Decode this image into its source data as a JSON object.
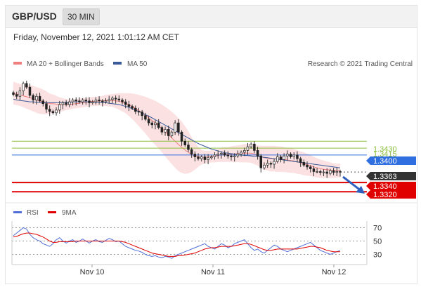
{
  "header": {
    "pair": "GBP/USD",
    "timeframe": "30 MIN"
  },
  "datetime": "Friday, November 12, 2021 1:01:12 AM CET",
  "legend": {
    "bollinger": "MA 20 + Bollinger Bands",
    "ma50": "MA 50",
    "research": "Research © 2021 Trading Central"
  },
  "rsi_legend": {
    "rsi": "RSI",
    "ma9": "9MA"
  },
  "colors": {
    "bollinger": "#f08080",
    "ma50": "#3a5a9a",
    "rsi": "#4f6fd8",
    "ma9": "#e00000",
    "resistance": "#8cbf3f",
    "pivot": "#2f6fe0",
    "support": "#e00000",
    "current": "#333333"
  },
  "chart_data": [
    {
      "type": "candlestick",
      "title": "",
      "x_labels": [
        "Nov 10",
        "Nov 11",
        "Nov 12"
      ],
      "ylim": [
        1.3305,
        1.3585
      ],
      "levels": [
        {
          "value": "1.3430",
          "kind": "resistance"
        },
        {
          "value": "1.3415",
          "kind": "resistance"
        },
        {
          "value": "1.3400",
          "kind": "pivot"
        },
        {
          "value": "1.3363",
          "kind": "current"
        },
        {
          "value": "1.3340",
          "kind": "support"
        },
        {
          "value": "1.3320",
          "kind": "support"
        }
      ],
      "close": [
        1.3532,
        1.3528,
        1.354,
        1.3556,
        1.3548,
        1.353,
        1.352,
        1.3528,
        1.3518,
        1.3512,
        1.35,
        1.3495,
        1.3492,
        1.3498,
        1.351,
        1.3514,
        1.351,
        1.3516,
        1.352,
        1.3518,
        1.3516,
        1.352,
        1.3518,
        1.3514,
        1.3516,
        1.352,
        1.3518,
        1.3516,
        1.3518,
        1.3521,
        1.3524,
        1.3522,
        1.352,
        1.3516,
        1.351,
        1.3506,
        1.3502,
        1.3495,
        1.3494,
        1.3486,
        1.3478,
        1.347,
        1.3466,
        1.347,
        1.346,
        1.345,
        1.3456,
        1.3442,
        1.345,
        1.347,
        1.345,
        1.343,
        1.3422,
        1.3412,
        1.3402,
        1.3396,
        1.3392,
        1.3396,
        1.339,
        1.3394,
        1.3396,
        1.34,
        1.3402,
        1.3404,
        1.34,
        1.3398,
        1.3396,
        1.3398,
        1.3402,
        1.3406,
        1.341,
        1.3418,
        1.3424,
        1.341,
        1.3398,
        1.3372,
        1.3378,
        1.3382,
        1.338,
        1.3386,
        1.3396,
        1.339,
        1.3398,
        1.3402,
        1.3396,
        1.34,
        1.3392,
        1.3384,
        1.3378,
        1.3374,
        1.337,
        1.3364,
        1.3364,
        1.3362,
        1.3363,
        1.336,
        1.3366,
        1.3362,
        1.3364,
        1.3363
      ],
      "bollinger_mid": [
        1.3535,
        1.3533,
        1.3531,
        1.3529,
        1.3527,
        1.3525,
        1.3523,
        1.352,
        1.3518,
        1.3516,
        1.3514,
        1.3512,
        1.3512,
        1.3511,
        1.351,
        1.351,
        1.351,
        1.351,
        1.3511,
        1.3512,
        1.3513,
        1.3514,
        1.3515,
        1.3516,
        1.3517,
        1.3517,
        1.3518,
        1.3518,
        1.3519,
        1.3519,
        1.3519,
        1.3518,
        1.3517,
        1.3515,
        1.3513,
        1.351,
        1.3506,
        1.3502,
        1.3497,
        1.3492,
        1.3487,
        1.3481,
        1.3475,
        1.347,
        1.3464,
        1.3458,
        1.3451,
        1.3444,
        1.3437,
        1.343,
        1.3423,
        1.3417,
        1.3411,
        1.3406,
        1.3401,
        1.3398,
        1.3396,
        1.3395,
        1.3395,
        1.3396,
        1.3397,
        1.3398,
        1.3399,
        1.34,
        1.3401,
        1.3401,
        1.3402,
        1.3402,
        1.3403,
        1.3403,
        1.3404,
        1.3404,
        1.3404,
        1.3402,
        1.3399,
        1.3396,
        1.3394,
        1.3393,
        1.3392,
        1.3392,
        1.3391,
        1.3391,
        1.339,
        1.3389,
        1.3388,
        1.3387,
        1.3385,
        1.3383,
        1.3381,
        1.3379,
        1.3377,
        1.3374,
        1.3372,
        1.337,
        1.3369,
        1.3368,
        1.3367,
        1.3366,
        1.3366,
        1.3366
      ],
      "bollinger_band": [
        0.0025,
        0.0024,
        0.0024,
        0.0025,
        0.0026,
        0.0027,
        0.0028,
        0.0028,
        0.0028,
        0.0027,
        0.0025,
        0.0022,
        0.002,
        0.0018,
        0.0016,
        0.0014,
        0.0012,
        0.0011,
        0.001,
        0.001,
        0.001,
        0.001,
        0.001,
        0.001,
        0.001,
        0.001,
        0.001,
        0.0011,
        0.0012,
        0.0013,
        0.0014,
        0.0016,
        0.0018,
        0.002,
        0.0022,
        0.0025,
        0.0028,
        0.0031,
        0.0034,
        0.0037,
        0.004,
        0.0043,
        0.0046,
        0.0048,
        0.005,
        0.0052,
        0.0054,
        0.0056,
        0.0057,
        0.0058,
        0.0058,
        0.0056,
        0.0052,
        0.0046,
        0.0038,
        0.003,
        0.0022,
        0.0016,
        0.0014,
        0.0013,
        0.0013,
        0.0014,
        0.0014,
        0.0015,
        0.0016,
        0.0016,
        0.0017,
        0.0018,
        0.0018,
        0.0019,
        0.002,
        0.002,
        0.0021,
        0.0022,
        0.0022,
        0.0024,
        0.0026,
        0.0027,
        0.0028,
        0.0028,
        0.0028,
        0.0028,
        0.0027,
        0.0027,
        0.0027,
        0.0026,
        0.0026,
        0.0025,
        0.0025,
        0.0024,
        0.0023,
        0.0022,
        0.0021,
        0.002,
        0.0019,
        0.0018,
        0.0017,
        0.0016,
        0.0015,
        0.0015
      ],
      "ma50": [
        1.3522,
        1.352,
        1.3519,
        1.3518,
        1.3517,
        1.3516,
        1.3516,
        1.3515,
        1.3515,
        1.3514,
        1.3514,
        1.3514,
        1.3514,
        1.3514,
        1.3514,
        1.3514,
        1.3515,
        1.3515,
        1.3516,
        1.3516,
        1.3516,
        1.3516,
        1.3516,
        1.3516,
        1.3515,
        1.3515,
        1.3515,
        1.3514,
        1.3514,
        1.3513,
        1.3512,
        1.3511,
        1.351,
        1.3508,
        1.3506,
        1.3504,
        1.3501,
        1.3498,
        1.3495,
        1.3492,
        1.3488,
        1.3485,
        1.3481,
        1.3477,
        1.3473,
        1.3469,
        1.3465,
        1.3461,
        1.3457,
        1.3453,
        1.3449,
        1.3445,
        1.3441,
        1.3437,
        1.3433,
        1.3429,
        1.3425,
        1.3422,
        1.3419,
        1.3416,
        1.3413,
        1.3411,
        1.3409,
        1.3407,
        1.3405,
        1.3404,
        1.3403,
        1.3402,
        1.3401,
        1.34,
        1.3399,
        1.3399,
        1.3398,
        1.3397,
        1.3397,
        1.3396,
        1.3395,
        1.3394,
        1.3393,
        1.3392,
        1.3391,
        1.339,
        1.3389,
        1.3388,
        1.3387,
        1.3386,
        1.3385,
        1.3384,
        1.3383,
        1.3382,
        1.3381,
        1.338,
        1.3379,
        1.3378,
        1.3377,
        1.3376,
        1.3375,
        1.3374,
        1.3373,
        1.3372
      ]
    },
    {
      "type": "line",
      "title": "",
      "ylim": [
        20,
        80
      ],
      "y_ticks": [
        "70",
        "50",
        "30"
      ],
      "series": [
        {
          "name": "RSI",
          "values": [
            58,
            62,
            66,
            70,
            68,
            60,
            55,
            52,
            50,
            46,
            44,
            42,
            46,
            52,
            55,
            50,
            47,
            50,
            52,
            48,
            50,
            53,
            50,
            47,
            50,
            52,
            49,
            48,
            51,
            54,
            52,
            49,
            50,
            46,
            42,
            40,
            38,
            36,
            35,
            33,
            30,
            28,
            27,
            28,
            26,
            25,
            27,
            26,
            24,
            28,
            30,
            32,
            34,
            36,
            38,
            40,
            42,
            44,
            46,
            42,
            40,
            38,
            42,
            46,
            44,
            40,
            42,
            46,
            48,
            50,
            52,
            46,
            40,
            36,
            38,
            34,
            32,
            36,
            40,
            44,
            42,
            38,
            36,
            34,
            36,
            38,
            40,
            42,
            44,
            46,
            48,
            44,
            40,
            36,
            34,
            32,
            30,
            32,
            34,
            36
          ]
        },
        {
          "name": "9MA",
          "values": [
            56,
            57,
            59,
            61,
            62,
            62,
            61,
            60,
            58,
            56,
            53,
            50,
            48,
            48,
            49,
            49,
            49,
            49,
            49,
            50,
            50,
            50,
            50,
            50,
            50,
            50,
            50,
            50,
            50,
            50,
            50,
            50,
            50,
            49,
            48,
            46,
            44,
            42,
            40,
            38,
            36,
            34,
            32,
            31,
            30,
            29,
            28,
            27,
            27,
            27,
            28,
            28,
            29,
            30,
            31,
            32,
            34,
            36,
            38,
            39,
            40,
            40,
            41,
            42,
            42,
            42,
            42,
            43,
            44,
            45,
            46,
            46,
            45,
            43,
            41,
            39,
            37,
            36,
            36,
            37,
            38,
            38,
            38,
            38,
            38,
            38,
            38,
            39,
            40,
            41,
            42,
            42,
            41,
            40,
            38,
            36,
            35,
            34,
            34,
            34
          ]
        }
      ]
    }
  ]
}
